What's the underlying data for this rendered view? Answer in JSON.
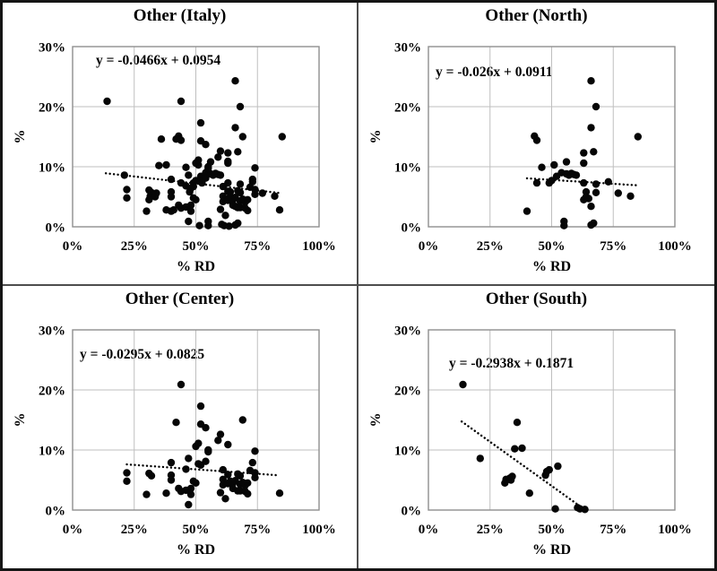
{
  "chart_data": [
    {
      "type": "scatter",
      "title": "Other (Italy)",
      "equation": "y = -0.0466x + 0.0954",
      "trend": {
        "slope": -0.0466,
        "intercept": 0.0954,
        "x_start": 13.5,
        "x_end": 85
      },
      "xlabel": "% RD",
      "ylabel": "%",
      "xlim": [
        0,
        100
      ],
      "ylim": [
        0,
        30
      ],
      "xticks": [
        "0%",
        "25%",
        "50%",
        "75%",
        "100%"
      ],
      "yticks": [
        "0%",
        "10%",
        "20%",
        "30%"
      ],
      "grid": true,
      "legend": "none",
      "points": [
        [
          40,
          2.6
        ],
        [
          43,
          15.1
        ],
        [
          44,
          14.4
        ],
        [
          44,
          7.3
        ],
        [
          46,
          9.9
        ],
        [
          49,
          7.3
        ],
        [
          50,
          7.7
        ],
        [
          51,
          10.3
        ],
        [
          52,
          8.4
        ],
        [
          54,
          9.0
        ],
        [
          55,
          0.2
        ],
        [
          55,
          0.9
        ],
        [
          56,
          8.8
        ],
        [
          56,
          10.8
        ],
        [
          57,
          8.6
        ],
        [
          58,
          8.9
        ],
        [
          59,
          8.7
        ],
        [
          60,
          8.6
        ],
        [
          63,
          12.3
        ],
        [
          63,
          10.6
        ],
        [
          63,
          7.3
        ],
        [
          63,
          4.5
        ],
        [
          64,
          5.0
        ],
        [
          64,
          5.8
        ],
        [
          65,
          4.7
        ],
        [
          66,
          24.3
        ],
        [
          66,
          16.5
        ],
        [
          66,
          3.4
        ],
        [
          66,
          0.3
        ],
        [
          67,
          12.5
        ],
        [
          67,
          0.6
        ],
        [
          68,
          20.0
        ],
        [
          68,
          7.1
        ],
        [
          68,
          5.7
        ],
        [
          73,
          7.5
        ],
        [
          77,
          5.6
        ],
        [
          82,
          5.1
        ],
        [
          85,
          15.0
        ],
        [
          22,
          6.2
        ],
        [
          22,
          4.8
        ],
        [
          30,
          2.6
        ],
        [
          31,
          6.1
        ],
        [
          32,
          5.7
        ],
        [
          38,
          2.8
        ],
        [
          40,
          7.9
        ],
        [
          40,
          5.8
        ],
        [
          40,
          5.0
        ],
        [
          42,
          14.6
        ],
        [
          43,
          3.6
        ],
        [
          44,
          20.9
        ],
        [
          44,
          3.1
        ],
        [
          46,
          3.3
        ],
        [
          46,
          6.8
        ],
        [
          47,
          8.6
        ],
        [
          47,
          0.9
        ],
        [
          48,
          3.6
        ],
        [
          48,
          2.6
        ],
        [
          49,
          4.8
        ],
        [
          50,
          4.5
        ],
        [
          50,
          10.6
        ],
        [
          51,
          11.1
        ],
        [
          51,
          7.7
        ],
        [
          52,
          7.5
        ],
        [
          52,
          17.3
        ],
        [
          52,
          14.3
        ],
        [
          54,
          13.7
        ],
        [
          54,
          8.1
        ],
        [
          55,
          10.0
        ],
        [
          55,
          9.7
        ],
        [
          59,
          11.6
        ],
        [
          60,
          12.6
        ],
        [
          60,
          2.9
        ],
        [
          61,
          6.7
        ],
        [
          61,
          5.1
        ],
        [
          61,
          4.2
        ],
        [
          62,
          1.9
        ],
        [
          63,
          10.9
        ],
        [
          63,
          4.4
        ],
        [
          63,
          5.9
        ],
        [
          64,
          4.8
        ],
        [
          65,
          4.4
        ],
        [
          65,
          3.6
        ],
        [
          66,
          4.9
        ],
        [
          67,
          6.0
        ],
        [
          67,
          3.2
        ],
        [
          68,
          5.7
        ],
        [
          68,
          4.3
        ],
        [
          68,
          3.2
        ],
        [
          69,
          15.0
        ],
        [
          69,
          4.6
        ],
        [
          70,
          4.1
        ],
        [
          70,
          3.1
        ],
        [
          71,
          4.5
        ],
        [
          71,
          2.7
        ],
        [
          72,
          6.6
        ],
        [
          73,
          7.9
        ],
        [
          74,
          9.8
        ],
        [
          74,
          6.2
        ],
        [
          74,
          5.4
        ],
        [
          84,
          2.8
        ],
        [
          14,
          20.9
        ],
        [
          21,
          8.6
        ],
        [
          31,
          4.5
        ],
        [
          31.5,
          5.1
        ],
        [
          33,
          5.3
        ],
        [
          33.5,
          5.0
        ],
        [
          34,
          5.6
        ],
        [
          35,
          10.2
        ],
        [
          36,
          14.6
        ],
        [
          38,
          10.3
        ],
        [
          41,
          2.8
        ],
        [
          47.5,
          5.8
        ],
        [
          48,
          6.4
        ],
        [
          49,
          6.7
        ],
        [
          52.5,
          7.3
        ],
        [
          51.5,
          0.2
        ],
        [
          60.5,
          0.4
        ],
        [
          61.5,
          0.2
        ],
        [
          63.5,
          0.1
        ]
      ]
    },
    {
      "type": "scatter",
      "title": "Other (North)",
      "equation": "y = -0.026x + 0.0911",
      "trend": {
        "slope": -0.026,
        "intercept": 0.0911,
        "x_start": 40,
        "x_end": 85
      },
      "xlabel": "% RD",
      "ylabel": "%",
      "xlim": [
        0,
        100
      ],
      "ylim": [
        0,
        30
      ],
      "xticks": [
        "0%",
        "25%",
        "50%",
        "75%",
        "100%"
      ],
      "yticks": [
        "0%",
        "10%",
        "20%",
        "30%"
      ],
      "grid": true,
      "legend": "none",
      "points": [
        [
          40,
          2.6
        ],
        [
          43,
          15.1
        ],
        [
          44,
          14.4
        ],
        [
          44,
          7.3
        ],
        [
          46,
          9.9
        ],
        [
          49,
          7.3
        ],
        [
          50,
          7.7
        ],
        [
          51,
          10.3
        ],
        [
          52,
          8.4
        ],
        [
          54,
          9.0
        ],
        [
          55,
          0.2
        ],
        [
          55,
          0.9
        ],
        [
          56,
          8.8
        ],
        [
          56,
          10.8
        ],
        [
          57,
          8.6
        ],
        [
          58,
          8.9
        ],
        [
          59,
          8.7
        ],
        [
          60,
          8.6
        ],
        [
          63,
          12.3
        ],
        [
          63,
          10.6
        ],
        [
          63,
          7.3
        ],
        [
          63,
          4.5
        ],
        [
          64,
          5.0
        ],
        [
          64,
          5.8
        ],
        [
          65,
          4.7
        ],
        [
          66,
          24.3
        ],
        [
          66,
          16.5
        ],
        [
          66,
          3.4
        ],
        [
          66,
          0.3
        ],
        [
          67,
          12.5
        ],
        [
          67,
          0.6
        ],
        [
          68,
          20.0
        ],
        [
          68,
          7.1
        ],
        [
          68,
          5.7
        ],
        [
          73,
          7.5
        ],
        [
          77,
          5.6
        ],
        [
          82,
          5.1
        ],
        [
          85,
          15.0
        ]
      ]
    },
    {
      "type": "scatter",
      "title": "Other (Center)",
      "equation": "y = -0.0295x + 0.0825",
      "trend": {
        "slope": -0.0295,
        "intercept": 0.0825,
        "x_start": 22,
        "x_end": 83
      },
      "xlabel": "% RD",
      "ylabel": "%",
      "xlim": [
        0,
        100
      ],
      "ylim": [
        0,
        30
      ],
      "xticks": [
        "0%",
        "25%",
        "50%",
        "75%",
        "100%"
      ],
      "yticks": [
        "0%",
        "10%",
        "20%",
        "30%"
      ],
      "grid": true,
      "legend": "none",
      "points": [
        [
          22,
          6.2
        ],
        [
          22,
          4.8
        ],
        [
          30,
          2.6
        ],
        [
          31,
          6.1
        ],
        [
          32,
          5.7
        ],
        [
          38,
          2.8
        ],
        [
          40,
          7.9
        ],
        [
          40,
          5.8
        ],
        [
          40,
          5.0
        ],
        [
          42,
          14.6
        ],
        [
          43,
          3.6
        ],
        [
          44,
          20.9
        ],
        [
          44,
          3.1
        ],
        [
          46,
          3.3
        ],
        [
          46,
          6.8
        ],
        [
          47,
          8.6
        ],
        [
          47,
          0.9
        ],
        [
          48,
          3.6
        ],
        [
          48,
          2.6
        ],
        [
          49,
          4.8
        ],
        [
          50,
          4.5
        ],
        [
          50,
          10.6
        ],
        [
          51,
          11.1
        ],
        [
          51,
          7.7
        ],
        [
          52,
          7.5
        ],
        [
          52,
          17.3
        ],
        [
          52,
          14.3
        ],
        [
          54,
          13.7
        ],
        [
          54,
          8.1
        ],
        [
          55,
          10.0
        ],
        [
          55,
          9.7
        ],
        [
          59,
          11.6
        ],
        [
          60,
          12.6
        ],
        [
          60,
          2.9
        ],
        [
          61,
          6.7
        ],
        [
          61,
          5.1
        ],
        [
          61,
          4.2
        ],
        [
          62,
          1.9
        ],
        [
          63,
          10.9
        ],
        [
          63,
          4.4
        ],
        [
          63,
          5.9
        ],
        [
          64,
          4.8
        ],
        [
          65,
          4.4
        ],
        [
          65,
          3.6
        ],
        [
          66,
          4.9
        ],
        [
          67,
          6.0
        ],
        [
          67,
          3.2
        ],
        [
          68,
          5.7
        ],
        [
          68,
          4.3
        ],
        [
          68,
          3.2
        ],
        [
          69,
          15.0
        ],
        [
          69,
          4.6
        ],
        [
          70,
          4.1
        ],
        [
          70,
          3.1
        ],
        [
          71,
          4.5
        ],
        [
          71,
          2.7
        ],
        [
          72,
          6.6
        ],
        [
          73,
          7.9
        ],
        [
          74,
          9.8
        ],
        [
          74,
          6.2
        ],
        [
          74,
          5.4
        ],
        [
          84,
          2.8
        ]
      ]
    },
    {
      "type": "scatter",
      "title": "Other (South)",
      "equation": "y = -0.2938x + 0.1871",
      "trend": {
        "slope": -0.2938,
        "intercept": 0.1871,
        "x_start": 13.5,
        "x_end": 62
      },
      "xlabel": "% RD",
      "ylabel": "%",
      "xlim": [
        0,
        100
      ],
      "ylim": [
        0,
        30
      ],
      "xticks": [
        "0%",
        "25%",
        "50%",
        "75%",
        "100%"
      ],
      "yticks": [
        "0%",
        "10%",
        "20%",
        "30%"
      ],
      "grid": true,
      "legend": "none",
      "points": [
        [
          14,
          20.9
        ],
        [
          21,
          8.6
        ],
        [
          31,
          4.5
        ],
        [
          31.5,
          5.1
        ],
        [
          33,
          5.3
        ],
        [
          33.5,
          5.0
        ],
        [
          34,
          5.6
        ],
        [
          35,
          10.2
        ],
        [
          36,
          14.6
        ],
        [
          38,
          10.3
        ],
        [
          41,
          2.8
        ],
        [
          47.5,
          5.8
        ],
        [
          48,
          6.4
        ],
        [
          49,
          6.7
        ],
        [
          52.5,
          7.3
        ],
        [
          51.5,
          0.2
        ],
        [
          60.5,
          0.4
        ],
        [
          61.5,
          0.2
        ],
        [
          63.5,
          0.1
        ]
      ]
    }
  ],
  "style": {
    "dot_color": "#060606",
    "trend_color": "#000000",
    "gridline_color": "#bfbfbf",
    "frame_color": "#8f8f8f",
    "divider_color": "#4d4d4d",
    "outer_border_color": "#151515"
  }
}
